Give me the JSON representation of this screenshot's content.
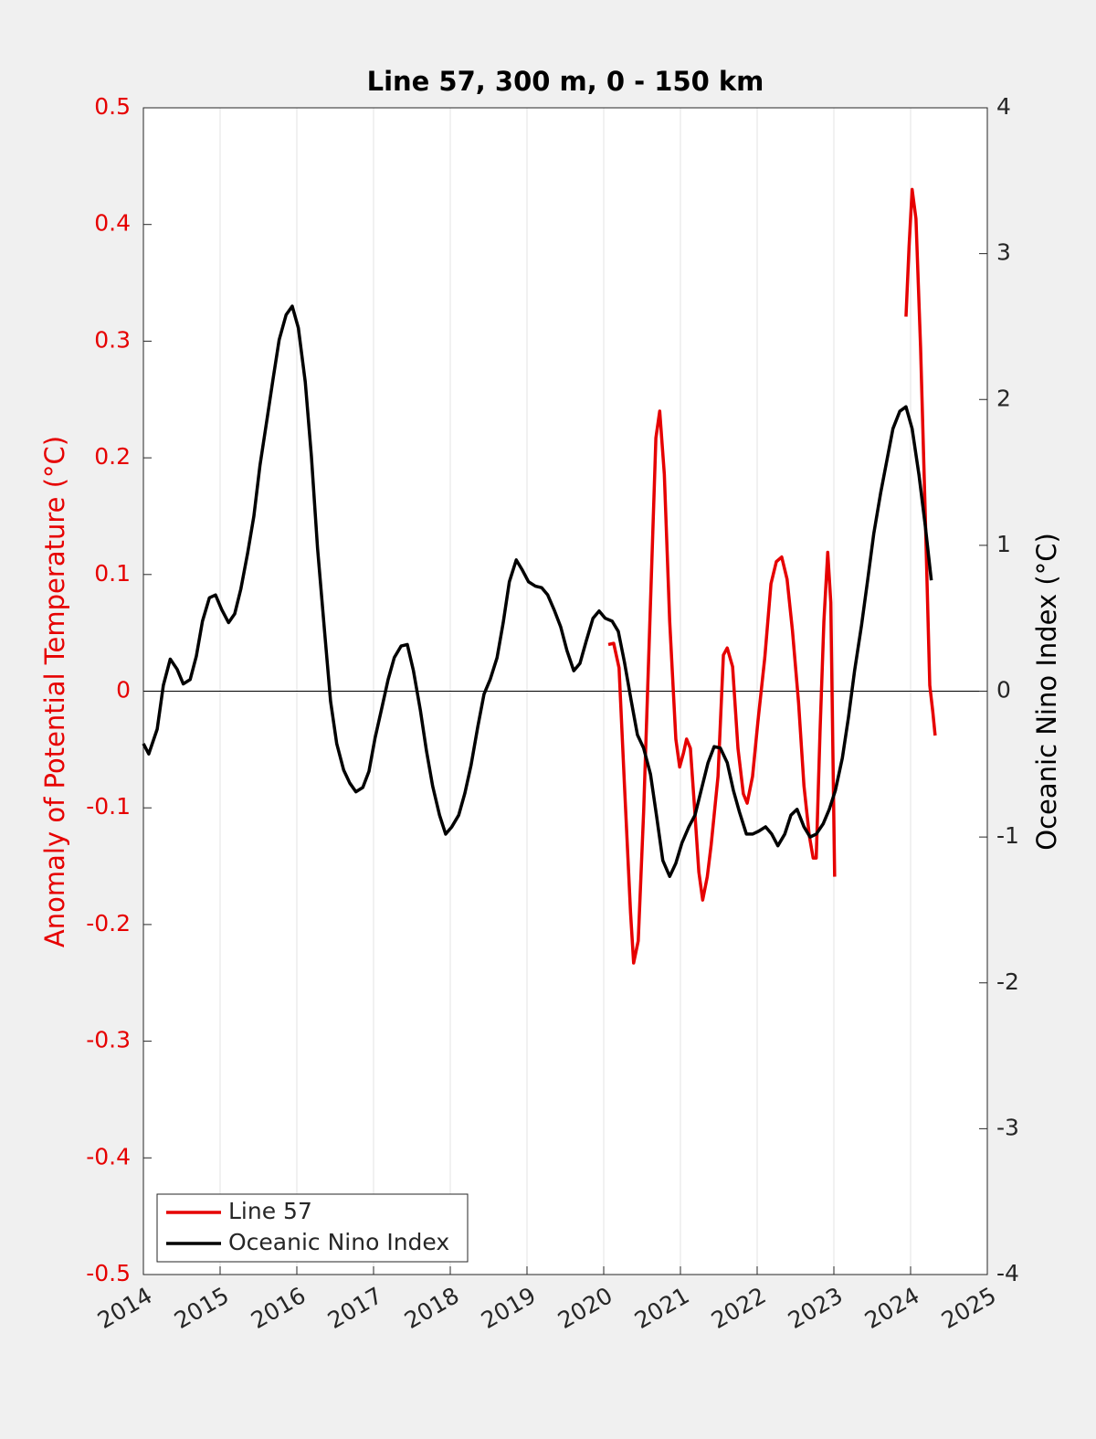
{
  "chart_data": {
    "type": "line",
    "title": "Line 57, 300 m, 0 - 150 km",
    "y_label": "Anomaly of Potential Temperature (°C)",
    "y2_label": "Oceanic Nino Index (°C)",
    "xlim": [
      2014,
      2025
    ],
    "xticks": [
      2014,
      2015,
      2016,
      2017,
      2018,
      2019,
      2020,
      2021,
      2022,
      2023,
      2024,
      2025
    ],
    "ylim": [
      -0.5,
      0.5
    ],
    "yticks": [
      -0.5,
      -0.4,
      -0.3,
      -0.2,
      -0.1,
      0,
      0.1,
      0.2,
      0.3,
      0.4,
      0.5
    ],
    "y2lim": [
      -4,
      4
    ],
    "y2ticks": [
      -4,
      -3,
      -2,
      -1,
      0,
      1,
      2,
      3,
      4
    ],
    "grid": "x",
    "legend": "lower left",
    "series": [
      {
        "name": "Line 57",
        "color": "#e60000",
        "axis": "y",
        "x": [
          2020.06,
          2020.13,
          2020.2,
          2020.27,
          2020.35,
          2020.39,
          2020.45,
          2020.52,
          2020.61,
          2020.68,
          2020.73,
          2020.79,
          2020.86,
          2020.94,
          2020.99,
          2021.04,
          2021.08,
          2021.13,
          2021.18,
          2021.24,
          2021.29,
          2021.35,
          2021.4,
          2021.49,
          2021.56,
          2021.61,
          2021.68,
          2021.75,
          2021.82,
          2021.87,
          2021.94,
          2022.01,
          2022.1,
          2022.18,
          2022.25,
          2022.32,
          2022.39,
          2022.46,
          2022.54,
          2022.61,
          2022.68,
          2022.73,
          2022.77,
          2022.82,
          2022.87,
          2022.92,
          2022.96,
          2023.01,
          2023.5,
          2023.94,
          2023.98,
          2024.02,
          2024.07,
          2024.13,
          2024.19,
          2024.25,
          2024.29,
          2024.32
        ],
        "values": [
          0.04,
          0.041,
          0.02,
          -0.08,
          -0.19,
          -0.233,
          -0.214,
          -0.104,
          0.076,
          0.217,
          0.24,
          0.186,
          0.06,
          -0.041,
          -0.065,
          -0.053,
          -0.041,
          -0.049,
          -0.096,
          -0.155,
          -0.179,
          -0.159,
          -0.132,
          -0.073,
          0.031,
          0.037,
          0.021,
          -0.049,
          -0.088,
          -0.096,
          -0.073,
          -0.026,
          0.029,
          0.092,
          0.111,
          0.115,
          0.096,
          0.052,
          -0.01,
          -0.081,
          -0.124,
          -0.143,
          -0.143,
          -0.034,
          0.06,
          0.119,
          0.076,
          -0.159,
          null,
          0.321,
          0.381,
          0.43,
          0.405,
          0.295,
          0.154,
          0.005,
          -0.018,
          -0.038
        ]
      },
      {
        "name": "Oceanic Nino Index",
        "color": "#000000",
        "axis": "y2",
        "x": [
          2014.0,
          2014.07,
          2014.18,
          2014.26,
          2014.35,
          2014.44,
          2014.52,
          2014.61,
          2014.69,
          2014.77,
          2014.86,
          2014.94,
          2015.02,
          2015.11,
          2015.19,
          2015.27,
          2015.36,
          2015.44,
          2015.52,
          2015.61,
          2015.69,
          2015.77,
          2015.86,
          2015.94,
          2016.02,
          2016.11,
          2016.19,
          2016.27,
          2016.36,
          2016.44,
          2016.52,
          2016.61,
          2016.69,
          2016.77,
          2016.86,
          2016.94,
          2017.02,
          2017.11,
          2017.19,
          2017.27,
          2017.36,
          2017.44,
          2017.52,
          2017.61,
          2017.69,
          2017.77,
          2017.86,
          2017.94,
          2018.02,
          2018.11,
          2018.19,
          2018.27,
          2018.36,
          2018.44,
          2018.52,
          2018.61,
          2018.69,
          2018.77,
          2018.86,
          2018.94,
          2019.02,
          2019.11,
          2019.19,
          2019.27,
          2019.36,
          2019.44,
          2019.52,
          2019.61,
          2019.69,
          2019.77,
          2019.86,
          2019.94,
          2020.02,
          2020.11,
          2020.19,
          2020.27,
          2020.36,
          2020.44,
          2020.52,
          2020.61,
          2020.69,
          2020.77,
          2020.86,
          2020.94,
          2021.02,
          2021.11,
          2021.19,
          2021.27,
          2021.36,
          2021.44,
          2021.52,
          2021.61,
          2021.69,
          2021.77,
          2021.86,
          2021.94,
          2022.02,
          2022.11,
          2022.19,
          2022.27,
          2022.36,
          2022.44,
          2022.52,
          2022.61,
          2022.69,
          2022.77,
          2022.86,
          2022.94,
          2023.02,
          2023.11,
          2023.19,
          2023.27,
          2023.36,
          2023.44,
          2023.52,
          2023.61,
          2023.69,
          2023.77,
          2023.86,
          2023.94,
          2024.02,
          2024.11,
          2024.19,
          2024.27
        ],
        "values": [
          -0.36,
          -0.43,
          -0.26,
          0.04,
          0.22,
          0.15,
          0.05,
          0.08,
          0.24,
          0.48,
          0.64,
          0.66,
          0.56,
          0.47,
          0.53,
          0.7,
          0.95,
          1.2,
          1.55,
          1.86,
          2.14,
          2.41,
          2.58,
          2.64,
          2.49,
          2.12,
          1.61,
          0.98,
          0.42,
          -0.07,
          -0.36,
          -0.54,
          -0.63,
          -0.69,
          -0.66,
          -0.55,
          -0.32,
          -0.11,
          0.08,
          0.23,
          0.31,
          0.32,
          0.14,
          -0.13,
          -0.41,
          -0.65,
          -0.85,
          -0.98,
          -0.93,
          -0.85,
          -0.7,
          -0.51,
          -0.24,
          -0.02,
          0.08,
          0.23,
          0.47,
          0.75,
          0.9,
          0.83,
          0.75,
          0.72,
          0.71,
          0.66,
          0.55,
          0.44,
          0.28,
          0.14,
          0.19,
          0.34,
          0.5,
          0.55,
          0.5,
          0.48,
          0.41,
          0.2,
          -0.07,
          -0.3,
          -0.39,
          -0.57,
          -0.86,
          -1.16,
          -1.27,
          -1.18,
          -1.04,
          -0.93,
          -0.85,
          -0.68,
          -0.49,
          -0.38,
          -0.39,
          -0.49,
          -0.68,
          -0.83,
          -0.98,
          -0.98,
          -0.96,
          -0.93,
          -0.98,
          -1.06,
          -0.98,
          -0.85,
          -0.81,
          -0.93,
          -1.0,
          -0.98,
          -0.91,
          -0.81,
          -0.68,
          -0.46,
          -0.18,
          0.14,
          0.45,
          0.76,
          1.08,
          1.36,
          1.58,
          1.8,
          1.92,
          1.95,
          1.8,
          1.48,
          1.14,
          0.76
        ]
      }
    ]
  }
}
